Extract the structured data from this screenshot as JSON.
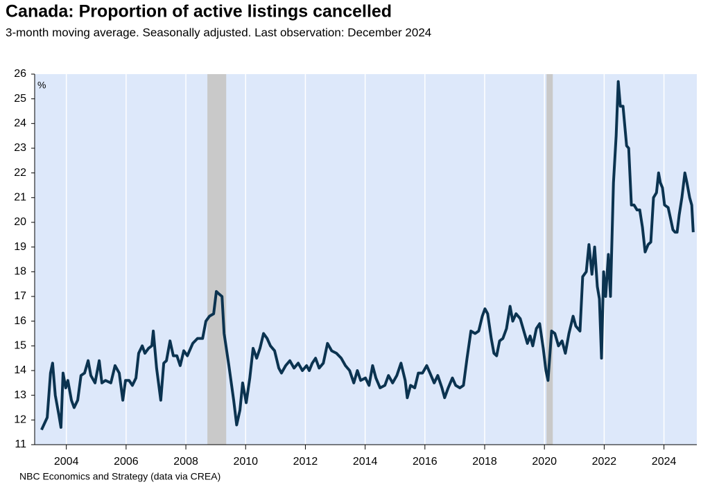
{
  "chart_data": {
    "type": "line",
    "title": "Canada: Proportion of active listings cancelled",
    "subtitle": "3-month moving average. Seasonally adjusted. Last observation: December 2024",
    "y_unit_label": "%",
    "source": "NBC Economics and Strategy (data via CREA)",
    "color": "#0b3350",
    "background": "#dde8fa",
    "shade_color": "#c9c9c9",
    "grid": true,
    "xlim": [
      2002.94,
      2025.1
    ],
    "ylim": [
      11,
      26
    ],
    "xticks": [
      2004,
      2006,
      2008,
      2010,
      2012,
      2014,
      2016,
      2018,
      2020,
      2022,
      2024
    ],
    "yticks": [
      11,
      12,
      13,
      14,
      15,
      16,
      17,
      18,
      19,
      20,
      21,
      22,
      23,
      24,
      25,
      26
    ],
    "shaded_periods": [
      [
        2008.72,
        2009.35
      ],
      [
        2020.07,
        2020.28
      ]
    ],
    "x": [
      2003.17,
      2003.36,
      2003.47,
      2003.54,
      2003.63,
      2003.75,
      2003.82,
      2003.89,
      2003.98,
      2004.05,
      2004.17,
      2004.26,
      2004.38,
      2004.49,
      2004.61,
      2004.73,
      2004.82,
      2004.96,
      2005.1,
      2005.19,
      2005.31,
      2005.49,
      2005.63,
      2005.77,
      2005.89,
      2005.98,
      2006.1,
      2006.21,
      2006.33,
      2006.42,
      2006.54,
      2006.63,
      2006.75,
      2006.86,
      2006.91,
      2007.02,
      2007.16,
      2007.26,
      2007.35,
      2007.47,
      2007.58,
      2007.7,
      2007.81,
      2007.93,
      2008.05,
      2008.23,
      2008.39,
      2008.56,
      2008.67,
      2008.79,
      2008.93,
      2009.02,
      2009.11,
      2009.21,
      2009.28,
      2009.44,
      2009.6,
      2009.7,
      2009.81,
      2009.9,
      2010.02,
      2010.14,
      2010.25,
      2010.37,
      2010.48,
      2010.6,
      2010.72,
      2010.83,
      2010.97,
      2011.11,
      2011.2,
      2011.34,
      2011.48,
      2011.62,
      2011.76,
      2011.9,
      2012.04,
      2012.13,
      2012.23,
      2012.34,
      2012.46,
      2012.6,
      2012.74,
      2012.88,
      2013.04,
      2013.2,
      2013.34,
      2013.48,
      2013.62,
      2013.74,
      2013.85,
      2014.01,
      2014.13,
      2014.25,
      2014.36,
      2014.5,
      2014.66,
      2014.78,
      2014.92,
      2015.06,
      2015.2,
      2015.34,
      2015.41,
      2015.52,
      2015.66,
      2015.78,
      2015.92,
      2016.06,
      2016.17,
      2016.31,
      2016.43,
      2016.57,
      2016.66,
      2016.78,
      2016.92,
      2017.03,
      2017.17,
      2017.29,
      2017.41,
      2017.54,
      2017.68,
      2017.8,
      2017.92,
      2018.01,
      2018.1,
      2018.22,
      2018.31,
      2018.4,
      2018.5,
      2018.61,
      2018.73,
      2018.85,
      2018.94,
      2019.05,
      2019.19,
      2019.31,
      2019.43,
      2019.52,
      2019.61,
      2019.73,
      2019.84,
      2019.96,
      2020.05,
      2020.12,
      2020.24,
      2020.35,
      2020.47,
      2020.59,
      2020.7,
      2020.82,
      2020.96,
      2021.05,
      2021.19,
      2021.28,
      2021.4,
      2021.49,
      2021.59,
      2021.68,
      2021.77,
      2021.84,
      2021.91,
      2021.98,
      2022.05,
      2022.14,
      2022.21,
      2022.31,
      2022.4,
      2022.47,
      2022.54,
      2022.63,
      2022.75,
      2022.82,
      2022.91,
      2023.0,
      2023.1,
      2023.19,
      2023.28,
      2023.37,
      2023.47,
      2023.56,
      2023.65,
      2023.75,
      2023.82,
      2023.88,
      2023.95,
      2024.02,
      2024.14,
      2024.23,
      2024.3,
      2024.37,
      2024.44,
      2024.51,
      2024.6,
      2024.7,
      2024.77,
      2024.86,
      2024.93,
      2024.98
    ],
    "values": [
      11.6,
      12.1,
      13.9,
      14.3,
      13.0,
      12.2,
      11.7,
      13.9,
      13.3,
      13.6,
      12.8,
      12.5,
      12.8,
      13.8,
      13.9,
      14.4,
      13.8,
      13.5,
      14.4,
      13.5,
      13.6,
      13.5,
      14.2,
      13.9,
      12.8,
      13.6,
      13.6,
      13.4,
      13.7,
      14.7,
      15.0,
      14.7,
      14.9,
      15.0,
      15.6,
      14.1,
      12.8,
      14.3,
      14.4,
      15.2,
      14.6,
      14.6,
      14.2,
      14.8,
      14.6,
      15.1,
      15.3,
      15.3,
      16.0,
      16.2,
      16.3,
      17.2,
      17.1,
      17.0,
      15.5,
      14.2,
      12.8,
      11.8,
      12.4,
      13.5,
      12.7,
      13.7,
      14.9,
      14.5,
      14.9,
      15.5,
      15.3,
      15.0,
      14.8,
      14.1,
      13.9,
      14.2,
      14.4,
      14.1,
      14.3,
      14.0,
      14.2,
      14.0,
      14.3,
      14.5,
      14.1,
      14.3,
      15.1,
      14.8,
      14.7,
      14.5,
      14.2,
      14.0,
      13.5,
      14.0,
      13.6,
      13.7,
      13.4,
      14.2,
      13.7,
      13.3,
      13.4,
      13.8,
      13.5,
      13.8,
      14.3,
      13.6,
      12.9,
      13.4,
      13.3,
      13.9,
      13.9,
      14.2,
      13.9,
      13.5,
      13.8,
      13.3,
      12.9,
      13.3,
      13.7,
      13.4,
      13.3,
      13.4,
      14.5,
      15.6,
      15.5,
      15.6,
      16.2,
      16.5,
      16.3,
      15.3,
      14.7,
      14.6,
      15.2,
      15.3,
      15.7,
      16.6,
      16.0,
      16.3,
      16.1,
      15.6,
      15.1,
      15.4,
      15.0,
      15.7,
      15.9,
      14.9,
      14.0,
      13.6,
      15.6,
      15.5,
      15.0,
      15.2,
      14.7,
      15.5,
      16.2,
      15.8,
      15.6,
      17.8,
      18.0,
      19.1,
      17.9,
      19.0,
      17.4,
      16.9,
      14.5,
      18.0,
      17.0,
      18.7,
      17.0,
      21.6,
      23.5,
      25.7,
      24.7,
      24.7,
      23.1,
      23.0,
      20.7,
      20.7,
      20.5,
      20.5,
      19.8,
      18.8,
      19.1,
      19.2,
      21.0,
      21.2,
      22.0,
      21.6,
      21.4,
      20.7,
      20.6,
      20.1,
      19.7,
      19.6,
      19.6,
      20.3,
      21.0,
      22.0,
      21.6,
      21.0,
      20.7,
      19.6
    ]
  }
}
